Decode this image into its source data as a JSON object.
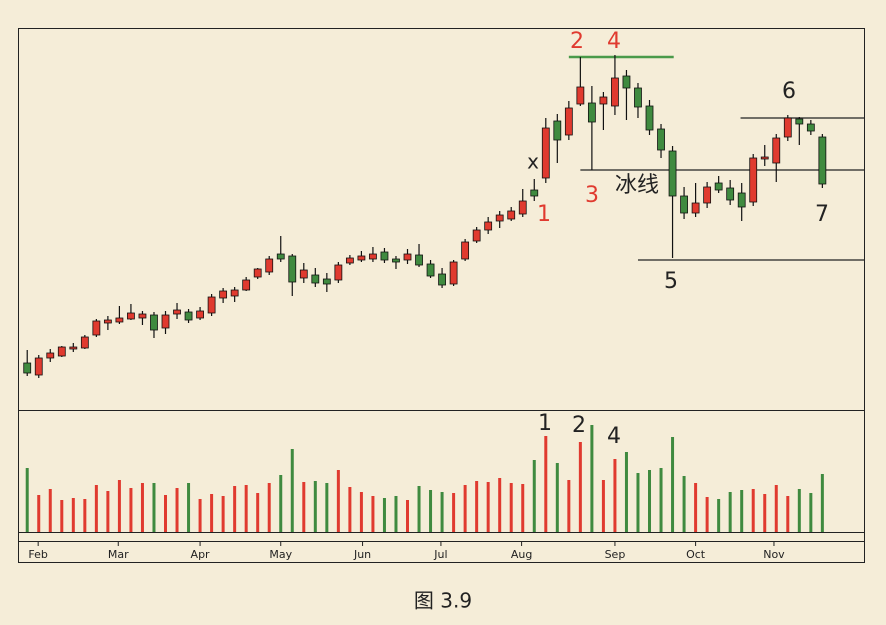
{
  "chart_data": {
    "type": "candlestick",
    "caption": "图 3.9",
    "up_color": "#e03a2f",
    "down_color": "#3f8a3f",
    "xlim": [
      -0.8,
      72.7
    ],
    "ylim": [
      10,
      392
    ],
    "volume_ylim": [
      0,
      122
    ],
    "xticks": [
      {
        "value": 0.95,
        "label": "Feb"
      },
      {
        "value": 7.9,
        "label": "Mar"
      },
      {
        "value": 15.0,
        "label": "Apr"
      },
      {
        "value": 22.0,
        "label": "May"
      },
      {
        "value": 29.1,
        "label": "Jun"
      },
      {
        "value": 35.9,
        "label": "Jul"
      },
      {
        "value": 42.9,
        "label": "Aug"
      },
      {
        "value": 51.0,
        "label": "Sep"
      },
      {
        "value": 58.0,
        "label": "Oct"
      },
      {
        "value": 64.8,
        "label": "Nov"
      }
    ],
    "open": [
      57,
      45,
      62,
      64,
      71,
      72,
      85,
      97,
      98,
      101,
      102,
      105,
      92,
      106,
      108,
      102,
      107,
      122,
      124,
      130,
      143,
      148,
      166,
      164,
      142,
      145,
      141,
      140,
      157,
      160,
      161,
      168,
      161,
      160,
      165,
      156,
      146,
      136,
      161,
      179,
      190,
      199,
      201,
      206,
      230,
      242,
      299,
      285,
      316,
      317,
      316,
      314,
      344,
      332,
      314,
      291,
      269,
      224,
      207,
      217,
      237,
      232,
      227,
      218,
      261,
      257,
      283,
      301,
      296,
      283
    ],
    "high": [
      70,
      65,
      71,
      74,
      77,
      85,
      101,
      104,
      114,
      116,
      109,
      108,
      109,
      117,
      111,
      113,
      126,
      132,
      133,
      143,
      152,
      164,
      184,
      166,
      157,
      152,
      147,
      158,
      165,
      169,
      173,
      172,
      164,
      171,
      176,
      160,
      152,
      160,
      181,
      193,
      203,
      209,
      213,
      231,
      241,
      302,
      306,
      319,
      363,
      334,
      328,
      365,
      350,
      337,
      320,
      296,
      274,
      233,
      237,
      238,
      244,
      240,
      237,
      266,
      275,
      286,
      305,
      303,
      300,
      286
    ],
    "low": [
      44,
      42,
      58,
      63,
      68,
      71,
      83,
      90,
      96,
      100,
      95,
      82,
      86,
      101,
      97,
      100,
      104,
      117,
      118,
      129,
      141,
      145,
      158,
      124,
      137,
      133,
      128,
      137,
      155,
      158,
      158,
      157,
      151,
      156,
      153,
      142,
      132,
      134,
      159,
      177,
      186,
      192,
      199,
      203,
      219,
      237,
      257,
      280,
      314,
      250,
      290,
      305,
      300,
      302,
      285,
      262,
      162,
      201,
      203,
      212,
      227,
      215,
      199,
      214,
      254,
      238,
      279,
      275,
      285,
      232
    ],
    "close": [
      47,
      62,
      67,
      73,
      73,
      83,
      99,
      100,
      102,
      107,
      106,
      90,
      105,
      110,
      100,
      109,
      123,
      129,
      130,
      140,
      151,
      161,
      161,
      138,
      150,
      137,
      136,
      155,
      162,
      164,
      166,
      160,
      158,
      166,
      155,
      144,
      135,
      158,
      178,
      190,
      198,
      205,
      209,
      219,
      224,
      292,
      280,
      312,
      333,
      298,
      323,
      342,
      332,
      313,
      290,
      270,
      224,
      207,
      217,
      233,
      230,
      220,
      213,
      262,
      263,
      282,
      302,
      296,
      289,
      236
    ],
    "volume": [
      64,
      37,
      43,
      32,
      34,
      33,
      47,
      41,
      52,
      44,
      49,
      49,
      37,
      44,
      49,
      33,
      38,
      36,
      46,
      47,
      39,
      49,
      57,
      83,
      50,
      51,
      49,
      62,
      45,
      40,
      36,
      34,
      36,
      32,
      46,
      42,
      40,
      39,
      47,
      51,
      50,
      54,
      49,
      48,
      72,
      96,
      69,
      52,
      90,
      107,
      52,
      73,
      80,
      59,
      62,
      64,
      95,
      56,
      49,
      35,
      33,
      40,
      42,
      43,
      38,
      47,
      36,
      43,
      39,
      58
    ],
    "levels": [
      {
        "value": 363,
        "from": 47.0,
        "to": 56.1,
        "color": "#4a9a4a"
      },
      {
        "value": 302,
        "from": 61.9,
        "to": 72.7,
        "color": "#222222"
      },
      {
        "value": 250,
        "from": 48.0,
        "to": 72.7,
        "color": "#222222"
      },
      {
        "value": 160,
        "from": 53.0,
        "to": 72.7,
        "color": "#222222"
      }
    ],
    "annotations": [
      {
        "text": "2",
        "color": "#e03a2f"
      },
      {
        "text": "4",
        "color": "#e03a2f"
      },
      {
        "text": "x",
        "color": "#222222"
      },
      {
        "text": "1",
        "color": "#e03a2f"
      },
      {
        "text": "3",
        "color": "#e03a2f"
      },
      {
        "text": "冰线",
        "color": "#222222"
      },
      {
        "text": "5",
        "color": "#222222"
      },
      {
        "text": "6",
        "color": "#222222"
      },
      {
        "text": "7",
        "color": "#222222"
      },
      {
        "text": "1",
        "color": "#222222"
      },
      {
        "text": "2",
        "color": "#222222"
      },
      {
        "text": "4",
        "color": "#222222"
      }
    ]
  }
}
